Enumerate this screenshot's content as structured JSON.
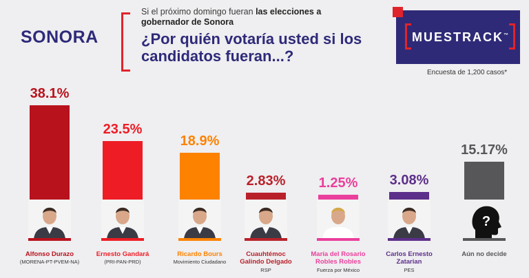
{
  "header": {
    "state": "SONORA",
    "question_lead": "Si el próximo domingo fueran ",
    "question_lead_bold": "las elecciones a gobernador de Sonora",
    "question_main": "¿Por quién votaría usted si los candidatos fueran...?",
    "brand": "MUESTRACK",
    "brand_mark": "™",
    "survey_note": "Encuesta de 1,200 casos*"
  },
  "chart_data": {
    "type": "bar",
    "title": "¿Por quién votaría usted si los candidatos fueran...?",
    "categories": [
      "Alfonso Durazo",
      "Ernesto Gandará",
      "Ricardo Bours",
      "Cuauhtémoc Galindo Delgado",
      "María del Rosario Robles Robles",
      "Carlos Ernesto Zatarian",
      "Aún no decide"
    ],
    "values": [
      38.1,
      23.5,
      18.9,
      2.83,
      1.25,
      3.08,
      15.17
    ],
    "ylim": [
      0,
      40
    ],
    "xlabel": "",
    "ylabel": ""
  },
  "candidates": [
    {
      "pct_label": "38.1%",
      "name": "Alfonso Durazo",
      "party": "(MORENA-PT-PVEM-NA)",
      "color": "#b8121d"
    },
    {
      "pct_label": "23.5%",
      "name": "Ernesto Gandará",
      "party": "(PRI-PAN-PRD)",
      "color": "#ee1c25"
    },
    {
      "pct_label": "18.9%",
      "name": "Ricardo Bours",
      "party": "Movimiento Ciudadano",
      "color": "#fc8200"
    },
    {
      "pct_label": "2.83%",
      "name": "Cuauhtémoc Galindo Delgado",
      "party": "RSP",
      "color": "#b9212a"
    },
    {
      "pct_label": "1.25%",
      "name": "María del Rosario Robles Robles",
      "party": "Fuerza por México",
      "color": "#ea3f9c"
    },
    {
      "pct_label": "3.08%",
      "name": "Carlos Ernesto Zatarian",
      "party": "PES",
      "color": "#5c2f8a"
    },
    {
      "pct_label": "15.17%",
      "name": "Aún no decide",
      "party": "",
      "color": "#57575a"
    }
  ]
}
